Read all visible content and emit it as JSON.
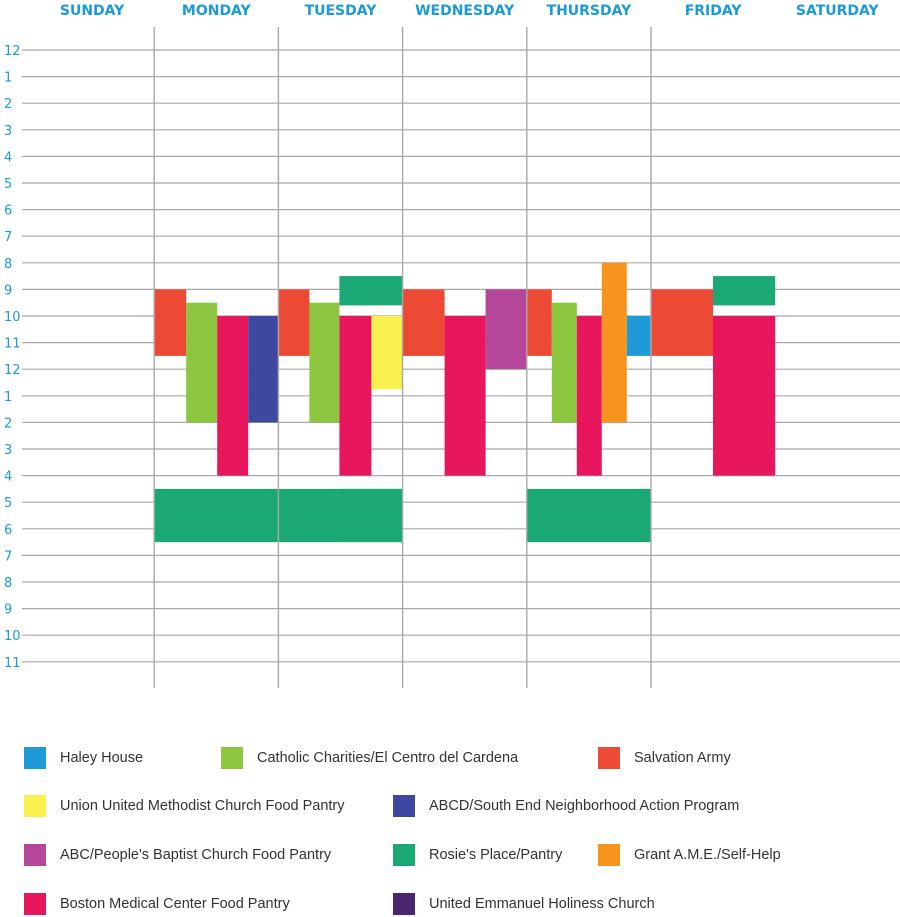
{
  "chart_data": {
    "type": "schedule",
    "days": [
      "SUNDAY",
      "MONDAY",
      "TUESDAY",
      "WEDNESDAY",
      "THURSDAY",
      "FRIDAY",
      "SATURDAY"
    ],
    "hour_labels": [
      "12",
      "1",
      "2",
      "3",
      "4",
      "5",
      "6",
      "7",
      "8",
      "9",
      "10",
      "11",
      "12",
      "1",
      "2",
      "3",
      "4",
      "5",
      "6",
      "7",
      "8",
      "9",
      "10",
      "11"
    ],
    "programs": [
      {
        "name": "Haley House",
        "color": "#1e9ad6"
      },
      {
        "name": "Catholic Charities/El Centro del Cardena",
        "color": "#8dc63f"
      },
      {
        "name": "Salvation Army",
        "color": "#ec4a34"
      },
      {
        "name": "Union United Methodist Church Food Pantry",
        "color": "#f9f14e"
      },
      {
        "name": "ABCD/South End Neighborhood Action Program",
        "color": "#3f48a0"
      },
      {
        "name": "ABC/People's Baptist Church Food Pantry",
        "color": "#b5479a"
      },
      {
        "name": "Rosie's Place/Pantry",
        "color": "#1aa874"
      },
      {
        "name": "Grant A.M.E./Self-Help",
        "color": "#f7941d"
      },
      {
        "name": "Boston Medical Center Food Pantry",
        "color": "#e8175d"
      },
      {
        "name": "United Emmanuel Holiness Church",
        "color": "#4a2672"
      }
    ],
    "sessions": [
      {
        "program": "Salvation Army",
        "day": "MONDAY",
        "start": 9,
        "end": 11.5
      },
      {
        "program": "Catholic Charities/El Centro del Cardena",
        "day": "MONDAY",
        "start": 9.5,
        "end": 14
      },
      {
        "program": "Boston Medical Center Food Pantry",
        "day": "MONDAY",
        "start": 10,
        "end": 16
      },
      {
        "program": "ABCD/South End Neighborhood Action Program",
        "day": "MONDAY",
        "start": 10,
        "end": 14
      },
      {
        "program": "Rosie's Place/Pantry",
        "day": "MONDAY",
        "start": 16.5,
        "end": 18.5
      },
      {
        "program": "Salvation Army",
        "day": "TUESDAY",
        "start": 9,
        "end": 11.5
      },
      {
        "program": "Catholic Charities/El Centro del Cardena",
        "day": "TUESDAY",
        "start": 9.5,
        "end": 14
      },
      {
        "program": "Rosie's Place/Pantry",
        "day": "TUESDAY",
        "start": 8.5,
        "end": 9.6
      },
      {
        "program": "Boston Medical Center Food Pantry",
        "day": "TUESDAY",
        "start": 10,
        "end": 16
      },
      {
        "program": "Union United Methodist Church Food Pantry",
        "day": "TUESDAY",
        "start": 10,
        "end": 12.75
      },
      {
        "program": "Rosie's Place/Pantry",
        "day": "TUESDAY",
        "start": 16.5,
        "end": 18.5
      },
      {
        "program": "Salvation Army",
        "day": "WEDNESDAY",
        "start": 9,
        "end": 11.5
      },
      {
        "program": "Boston Medical Center Food Pantry",
        "day": "WEDNESDAY",
        "start": 10,
        "end": 16
      },
      {
        "program": "ABC/People's Baptist Church Food Pantry",
        "day": "WEDNESDAY",
        "start": 9,
        "end": 12
      },
      {
        "program": "Salvation Army",
        "day": "THURSDAY",
        "start": 9,
        "end": 11.5
      },
      {
        "program": "Catholic Charities/El Centro del Cardena",
        "day": "THURSDAY",
        "start": 9.5,
        "end": 14
      },
      {
        "program": "Boston Medical Center Food Pantry",
        "day": "THURSDAY",
        "start": 10,
        "end": 16
      },
      {
        "program": "Grant A.M.E./Self-Help",
        "day": "THURSDAY",
        "start": 8,
        "end": 14
      },
      {
        "program": "Haley House",
        "day": "THURSDAY",
        "start": 10,
        "end": 11.5
      },
      {
        "program": "Rosie's Place/Pantry",
        "day": "THURSDAY",
        "start": 16.5,
        "end": 18.5
      },
      {
        "program": "Salvation Army",
        "day": "FRIDAY",
        "start": 9,
        "end": 11.5
      },
      {
        "program": "Rosie's Place/Pantry",
        "day": "FRIDAY",
        "start": 8.5,
        "end": 9.6
      },
      {
        "program": "Boston Medical Center Food Pantry",
        "day": "FRIDAY",
        "start": 10,
        "end": 16
      }
    ]
  },
  "legend": [
    {
      "label": "Haley House",
      "color": "#1e9ad6"
    },
    {
      "label": "Catholic Charities/El Centro del Cardena",
      "color": "#8dc63f"
    },
    {
      "label": "Salvation Army",
      "color": "#ec4a34"
    },
    {
      "label": "Union United Methodist Church Food Pantry",
      "color": "#f9f14e"
    },
    {
      "label": "ABCD/South End Neighborhood Action Program",
      "color": "#3f48a0"
    },
    {
      "label": "ABC/People's Baptist Church Food Pantry",
      "color": "#b5479a"
    },
    {
      "label": "Rosie's Place/Pantry",
      "color": "#1aa874"
    },
    {
      "label": "Grant A.M.E./Self-Help",
      "color": "#f7941d"
    },
    {
      "label": "Boston Medical Center Food Pantry",
      "color": "#e8175d"
    },
    {
      "label": "United Emmanuel Holiness Church",
      "color": "#4a2672"
    }
  ]
}
